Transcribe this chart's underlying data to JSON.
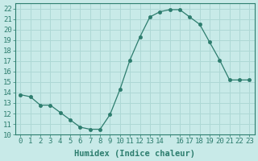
{
  "x": [
    0,
    1,
    2,
    3,
    4,
    5,
    6,
    7,
    8,
    9,
    10,
    11,
    12,
    13,
    14,
    15,
    16,
    17,
    18,
    19,
    20,
    21,
    22,
    23
  ],
  "y": [
    13.8,
    13.6,
    12.8,
    12.8,
    12.1,
    11.4,
    10.7,
    10.5,
    10.5,
    11.9,
    14.3,
    17.1,
    19.3,
    21.2,
    21.7,
    21.9,
    21.9,
    21.2,
    20.5,
    18.8,
    17.1,
    15.2,
    15.2,
    15.2
  ],
  "xlabel": "Humidex (Indice chaleur)",
  "ylim": [
    10,
    22.5
  ],
  "xlim": [
    -0.5,
    23.5
  ],
  "yticks": [
    10,
    11,
    12,
    13,
    14,
    15,
    16,
    17,
    18,
    19,
    20,
    21,
    22
  ],
  "xtick_positions": [
    0,
    1,
    2,
    3,
    4,
    5,
    6,
    7,
    8,
    9,
    10,
    11,
    12,
    13,
    14,
    15,
    16,
    17,
    18,
    19,
    20,
    21,
    22,
    23
  ],
  "xtick_labels": [
    "0",
    "1",
    "2",
    "3",
    "4",
    "5",
    "6",
    "7",
    "8",
    "9",
    "10",
    "11",
    "12",
    "13",
    "14",
    "",
    "16",
    "17",
    "18",
    "19",
    "20",
    "21",
    "22",
    "23"
  ],
  "line_color": "#2d7d6e",
  "marker_size": 3,
  "bg_color": "#c8eae8",
  "grid_color": "#aed8d5",
  "tick_label_fontsize": 6.5,
  "xlabel_fontsize": 7.5
}
